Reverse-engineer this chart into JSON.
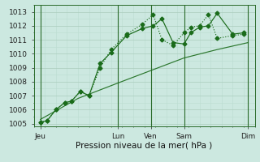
{
  "xlabel": "Pression niveau de la mer( hPa )",
  "bg_color": "#cce8e0",
  "plot_bg_color": "#cce8e0",
  "line_color": "#1a6b1a",
  "grid_major_color": "#aaccbc",
  "grid_minor_color": "#bbddd0",
  "ylim": [
    1004.8,
    1013.5
  ],
  "yticks": [
    1005,
    1006,
    1007,
    1008,
    1009,
    1010,
    1011,
    1012,
    1013
  ],
  "xlim": [
    0,
    10.0
  ],
  "day_positions": [
    0.3,
    3.8,
    5.3,
    6.8,
    9.7
  ],
  "day_labels": [
    "Jeu",
    "Lun",
    "Ven",
    "Sam",
    "Dim"
  ],
  "vline_x": [
    0.3,
    3.8,
    5.3,
    6.8,
    9.7
  ],
  "series1_x": [
    0.3,
    0.6,
    1.0,
    1.4,
    1.7,
    2.1,
    2.5,
    3.0,
    3.5,
    4.2,
    4.9,
    5.4,
    5.8,
    6.3,
    6.8,
    7.1,
    7.5,
    7.9,
    8.3,
    9.0,
    9.5
  ],
  "series1_y": [
    1005.1,
    1005.2,
    1006.0,
    1006.5,
    1006.6,
    1007.3,
    1007.0,
    1009.3,
    1010.1,
    1011.3,
    1011.8,
    1012.0,
    1012.5,
    1010.8,
    1010.7,
    1011.5,
    1011.9,
    1012.0,
    1012.9,
    1011.4,
    1011.5
  ],
  "series2_x": [
    0.3,
    0.6,
    1.0,
    1.4,
    1.7,
    2.1,
    2.5,
    3.0,
    3.5,
    4.2,
    4.9,
    5.4,
    5.8,
    6.3,
    6.8,
    7.1,
    7.5,
    7.9,
    8.3,
    9.0,
    9.5
  ],
  "series2_y": [
    1005.1,
    1005.2,
    1006.0,
    1006.5,
    1006.6,
    1007.3,
    1007.0,
    1009.0,
    1010.3,
    1011.4,
    1012.1,
    1012.8,
    1011.0,
    1010.6,
    1011.5,
    1011.9,
    1012.0,
    1012.8,
    1011.1,
    1011.3,
    1011.4
  ],
  "series3_x": [
    0.3,
    2.0,
    3.8,
    5.3,
    6.8,
    8.3,
    9.7
  ],
  "series3_y": [
    1005.3,
    1006.8,
    1007.9,
    1008.8,
    1009.7,
    1010.3,
    1010.8
  ],
  "marker_size": 2.5,
  "linewidth": 0.85
}
